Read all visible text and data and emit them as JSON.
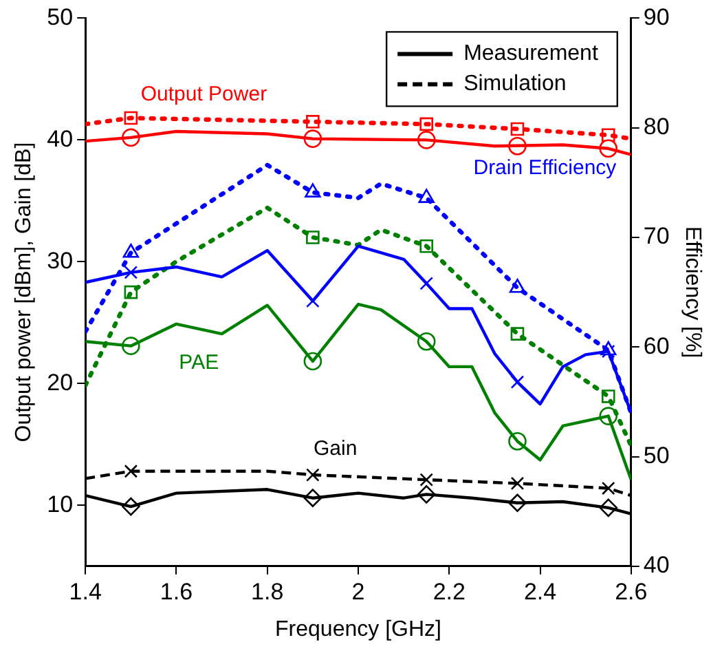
{
  "chart_data": {
    "type": "line",
    "xlabel": "Frequency [GHz]",
    "ylabel": "Output power [dBm], Gain [dB]",
    "y2label": "Efficiency [%]",
    "xlim": [
      1.4,
      2.6
    ],
    "xticks": [
      1.4,
      1.6,
      1.8,
      2,
      2.2,
      2.4,
      2.6
    ],
    "ylim": [
      5,
      50
    ],
    "yticks": [
      10,
      20,
      30,
      40,
      50
    ],
    "y2lim": [
      40,
      90
    ],
    "y2ticks": [
      40,
      50,
      60,
      70,
      80,
      90
    ],
    "grid": false,
    "legend": "top right",
    "annotations": [
      "Output Power",
      "Drain Efficiency",
      "PAE",
      "Gain"
    ],
    "series": [
      {
        "color": "#ff0000",
        "line_style": "solid",
        "marker": "none",
        "x": [
          1.4,
          1.5,
          1.6,
          1.8,
          1.9,
          2.15,
          2.3,
          2.45,
          2.55,
          2.6
        ],
        "values": [
          39.9,
          40.2,
          40.7,
          40.5,
          40.1,
          40.0,
          39.5,
          39.6,
          39.3,
          38.8
        ]
      },
      {
        "color": "#ff0000",
        "line_style": "dotted",
        "marker": "none",
        "x": [
          1.4,
          1.5,
          1.9,
          2.15,
          2.35,
          2.55,
          2.6
        ],
        "values": [
          41.3,
          41.8,
          41.5,
          41.3,
          40.9,
          40.4,
          40.1
        ]
      },
      {
        "color": "#0000ff",
        "axis": "y2",
        "line_style": "solid",
        "marker": "none",
        "x": [
          1.4,
          1.5,
          1.6,
          1.7,
          1.8,
          1.9,
          2.0,
          2.1,
          2.15,
          2.2,
          2.25,
          2.3,
          2.35,
          2.4,
          2.45,
          2.5,
          2.55,
          2.6
        ],
        "values": [
          65.9,
          66.8,
          67.3,
          66.4,
          68.8,
          64.2,
          69.2,
          68.0,
          65.8,
          63.5,
          63.5,
          59.4,
          56.8,
          54.8,
          58.2,
          59.3,
          59.6,
          54.0
        ]
      },
      {
        "color": "#0000ff",
        "axis": "y2",
        "line_style": "dotted",
        "marker": "none",
        "x": [
          1.4,
          1.5,
          1.8,
          1.9,
          2.0,
          2.05,
          2.15,
          2.35,
          2.55,
          2.6
        ],
        "values": [
          61.4,
          68.6,
          76.6,
          74.1,
          73.6,
          74.9,
          73.6,
          65.4,
          59.7,
          54.0
        ]
      },
      {
        "color": "#008000",
        "axis": "y2",
        "line_style": "solid",
        "marker": "none",
        "x": [
          1.4,
          1.5,
          1.6,
          1.7,
          1.8,
          1.9,
          2.0,
          2.05,
          2.15,
          2.2,
          2.25,
          2.3,
          2.35,
          2.4,
          2.45,
          2.55,
          2.6
        ],
        "values": [
          60.5,
          60.1,
          62.1,
          61.2,
          63.8,
          58.7,
          63.9,
          63.4,
          60.5,
          58.2,
          58.2,
          54.0,
          51.4,
          49.7,
          52.8,
          53.7,
          47.9
        ]
      },
      {
        "color": "#008000",
        "axis": "y2",
        "line_style": "dotted",
        "marker": "none",
        "x": [
          1.4,
          1.5,
          1.6,
          1.8,
          1.9,
          2.0,
          2.05,
          2.15,
          2.35,
          2.55,
          2.6
        ],
        "values": [
          56.5,
          65.0,
          67.8,
          72.7,
          70.0,
          69.3,
          70.7,
          69.2,
          61.2,
          55.5,
          51.0
        ]
      },
      {
        "name": "Measurement",
        "color": "#000000",
        "line_style": "solid",
        "marker": "none",
        "x": [
          1.4,
          1.5,
          1.6,
          1.8,
          1.9,
          2.0,
          2.1,
          2.15,
          2.25,
          2.35,
          2.45,
          2.55,
          2.6
        ],
        "values": [
          10.8,
          9.9,
          11.0,
          11.3,
          10.6,
          11.0,
          10.6,
          10.9,
          10.6,
          10.2,
          10.3,
          9.8,
          9.3
        ]
      },
      {
        "name": "Simulation",
        "color": "#000000",
        "line_style": "dashed",
        "marker": "none",
        "x": [
          1.4,
          1.5,
          1.8,
          1.9,
          2.15,
          2.35,
          2.55,
          2.6
        ],
        "values": [
          12.2,
          12.8,
          12.8,
          12.5,
          12.1,
          11.8,
          11.4,
          10.8
        ]
      },
      {
        "type": "scatter",
        "color": "#ff0000",
        "marker": "circle",
        "x": [
          1.5,
          1.9,
          2.15,
          2.35,
          2.55
        ],
        "values": [
          40.2,
          40.1,
          40.0,
          39.5,
          39.3
        ]
      },
      {
        "type": "scatter",
        "color": "#ff0000",
        "marker": "square",
        "x": [
          1.5,
          1.9,
          2.15,
          2.35,
          2.55
        ],
        "values": [
          41.8,
          41.5,
          41.3,
          40.9,
          40.4
        ]
      },
      {
        "type": "scatter",
        "color": "#0000ff",
        "axis": "y2",
        "marker": "triangle",
        "x": [
          1.5,
          1.9,
          2.15,
          2.35,
          2.55
        ],
        "values": [
          68.6,
          74.1,
          73.6,
          65.4,
          59.7
        ]
      },
      {
        "type": "scatter",
        "color": "#0000ff",
        "axis": "y2",
        "marker": "cross",
        "x": [
          1.5,
          1.9,
          2.15,
          2.35,
          2.55
        ],
        "values": [
          66.8,
          64.2,
          65.8,
          56.8,
          59.6
        ]
      },
      {
        "type": "scatter",
        "color": "#008000",
        "axis": "y2",
        "marker": "square",
        "x": [
          1.5,
          1.9,
          2.15,
          2.35,
          2.55
        ],
        "values": [
          65.0,
          70.0,
          69.2,
          61.2,
          55.5
        ]
      },
      {
        "type": "scatter",
        "color": "#008000",
        "axis": "y2",
        "marker": "circle",
        "x": [
          1.5,
          1.9,
          2.15,
          2.35,
          2.55
        ],
        "values": [
          60.1,
          58.7,
          60.5,
          51.4,
          53.7
        ]
      },
      {
        "type": "scatter",
        "color": "#000000",
        "marker": "cross",
        "x": [
          1.5,
          1.9,
          2.15,
          2.35,
          2.55
        ],
        "values": [
          12.8,
          12.5,
          12.1,
          11.8,
          11.4
        ]
      },
      {
        "type": "scatter",
        "color": "#000000",
        "marker": "diamond",
        "x": [
          1.5,
          1.9,
          2.15,
          2.35,
          2.55
        ],
        "values": [
          9.9,
          10.6,
          10.9,
          10.2,
          9.8
        ]
      }
    ]
  }
}
